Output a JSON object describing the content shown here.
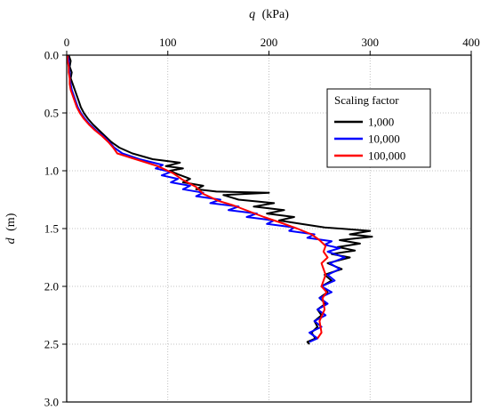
{
  "chart_data": {
    "type": "line",
    "title": "",
    "xlabel_var": "q",
    "xlabel_unit": "(kPa)",
    "ylabel_var": "d",
    "ylabel_unit": "(m)",
    "xlim": [
      0,
      400
    ],
    "ylim": [
      0,
      3.0
    ],
    "y_inverted": true,
    "x_axis_position": "top",
    "x_ticks": [
      0,
      100,
      200,
      300,
      400
    ],
    "x_tick_labels": [
      "0",
      "100",
      "200",
      "300",
      "400"
    ],
    "y_ticks": [
      0,
      0.5,
      1.0,
      1.5,
      2.0,
      2.5,
      3.0
    ],
    "y_tick_labels": [
      "0.0",
      "0.5",
      "1.0",
      "1.5",
      "2.0",
      "2.5",
      "3.0"
    ],
    "grid": "dotted",
    "legend_title": "Scaling factor",
    "legend_position": "top-right",
    "series": [
      {
        "name": "1,000",
        "color": "#000000",
        "points": [
          [
            2,
            0.0
          ],
          [
            4,
            0.05
          ],
          [
            3,
            0.1
          ],
          [
            5,
            0.15
          ],
          [
            4,
            0.2
          ],
          [
            6,
            0.25
          ],
          [
            8,
            0.3
          ],
          [
            10,
            0.35
          ],
          [
            12,
            0.4
          ],
          [
            14,
            0.45
          ],
          [
            17,
            0.5
          ],
          [
            21,
            0.55
          ],
          [
            26,
            0.6
          ],
          [
            32,
            0.65
          ],
          [
            38,
            0.7
          ],
          [
            44,
            0.75
          ],
          [
            52,
            0.8
          ],
          [
            65,
            0.85
          ],
          [
            85,
            0.9
          ],
          [
            112,
            0.93
          ],
          [
            98,
            0.96
          ],
          [
            115,
            0.98
          ],
          [
            102,
            1.0
          ],
          [
            110,
            1.03
          ],
          [
            122,
            1.07
          ],
          [
            115,
            1.1
          ],
          [
            135,
            1.13
          ],
          [
            128,
            1.16
          ],
          [
            148,
            1.18
          ],
          [
            200,
            1.19
          ],
          [
            155,
            1.21
          ],
          [
            170,
            1.25
          ],
          [
            205,
            1.28
          ],
          [
            185,
            1.31
          ],
          [
            215,
            1.34
          ],
          [
            198,
            1.37
          ],
          [
            225,
            1.4
          ],
          [
            210,
            1.43
          ],
          [
            232,
            1.46
          ],
          [
            255,
            1.49
          ],
          [
            300,
            1.52
          ],
          [
            280,
            1.55
          ],
          [
            302,
            1.57
          ],
          [
            270,
            1.6
          ],
          [
            290,
            1.63
          ],
          [
            268,
            1.66
          ],
          [
            285,
            1.69
          ],
          [
            262,
            1.72
          ],
          [
            280,
            1.75
          ],
          [
            258,
            1.8
          ],
          [
            272,
            1.85
          ],
          [
            255,
            1.9
          ],
          [
            262,
            1.95
          ],
          [
            252,
            2.0
          ],
          [
            258,
            2.05
          ],
          [
            250,
            2.1
          ],
          [
            256,
            2.15
          ],
          [
            248,
            2.2
          ],
          [
            252,
            2.25
          ],
          [
            245,
            2.3
          ],
          [
            248,
            2.35
          ],
          [
            242,
            2.4
          ],
          [
            246,
            2.45
          ],
          [
            238,
            2.48
          ],
          [
            240,
            2.5
          ]
        ]
      },
      {
        "name": "10,000",
        "color": "#0000ff",
        "points": [
          [
            1,
            0.0
          ],
          [
            2,
            0.05
          ],
          [
            2,
            0.1
          ],
          [
            3,
            0.15
          ],
          [
            3,
            0.2
          ],
          [
            4,
            0.25
          ],
          [
            5,
            0.3
          ],
          [
            7,
            0.35
          ],
          [
            9,
            0.4
          ],
          [
            11,
            0.45
          ],
          [
            14,
            0.5
          ],
          [
            18,
            0.55
          ],
          [
            23,
            0.6
          ],
          [
            29,
            0.65
          ],
          [
            36,
            0.7
          ],
          [
            42,
            0.75
          ],
          [
            47,
            0.8
          ],
          [
            55,
            0.85
          ],
          [
            72,
            0.9
          ],
          [
            95,
            0.95
          ],
          [
            88,
            0.98
          ],
          [
            103,
            1.01
          ],
          [
            94,
            1.04
          ],
          [
            110,
            1.07
          ],
          [
            103,
            1.1
          ],
          [
            122,
            1.13
          ],
          [
            115,
            1.16
          ],
          [
            135,
            1.19
          ],
          [
            128,
            1.22
          ],
          [
            152,
            1.25
          ],
          [
            142,
            1.28
          ],
          [
            170,
            1.31
          ],
          [
            160,
            1.34
          ],
          [
            188,
            1.37
          ],
          [
            178,
            1.4
          ],
          [
            205,
            1.43
          ],
          [
            198,
            1.46
          ],
          [
            225,
            1.49
          ],
          [
            220,
            1.52
          ],
          [
            245,
            1.55
          ],
          [
            238,
            1.58
          ],
          [
            262,
            1.61
          ],
          [
            255,
            1.64
          ],
          [
            270,
            1.67
          ],
          [
            258,
            1.7
          ],
          [
            275,
            1.75
          ],
          [
            260,
            1.8
          ],
          [
            270,
            1.85
          ],
          [
            258,
            1.9
          ],
          [
            265,
            1.95
          ],
          [
            252,
            2.0
          ],
          [
            262,
            2.05
          ],
          [
            250,
            2.1
          ],
          [
            258,
            2.15
          ],
          [
            248,
            2.2
          ],
          [
            256,
            2.25
          ],
          [
            245,
            2.3
          ],
          [
            252,
            2.35
          ],
          [
            240,
            2.4
          ],
          [
            248,
            2.45
          ],
          [
            240,
            2.48
          ]
        ]
      },
      {
        "name": "100,000",
        "color": "#ff0000",
        "points": [
          [
            1,
            0.0
          ],
          [
            1,
            0.05
          ],
          [
            2,
            0.1
          ],
          [
            2,
            0.15
          ],
          [
            3,
            0.2
          ],
          [
            3,
            0.25
          ],
          [
            4,
            0.3
          ],
          [
            6,
            0.35
          ],
          [
            8,
            0.4
          ],
          [
            10,
            0.45
          ],
          [
            13,
            0.5
          ],
          [
            17,
            0.55
          ],
          [
            22,
            0.6
          ],
          [
            28,
            0.65
          ],
          [
            35,
            0.7
          ],
          [
            41,
            0.75
          ],
          [
            46,
            0.8
          ],
          [
            50,
            0.85
          ],
          [
            68,
            0.9
          ],
          [
            90,
            0.96
          ],
          [
            105,
            1.02
          ],
          [
            115,
            1.08
          ],
          [
            128,
            1.14
          ],
          [
            135,
            1.2
          ],
          [
            150,
            1.26
          ],
          [
            165,
            1.3
          ],
          [
            180,
            1.35
          ],
          [
            195,
            1.4
          ],
          [
            212,
            1.45
          ],
          [
            228,
            1.5
          ],
          [
            242,
            1.55
          ],
          [
            250,
            1.6
          ],
          [
            256,
            1.65
          ],
          [
            254,
            1.7
          ],
          [
            258,
            1.75
          ],
          [
            252,
            1.8
          ],
          [
            256,
            1.9
          ],
          [
            252,
            2.0
          ],
          [
            257,
            2.05
          ],
          [
            253,
            2.1
          ],
          [
            255,
            2.2
          ],
          [
            250,
            2.3
          ],
          [
            252,
            2.4
          ],
          [
            248,
            2.45
          ]
        ]
      }
    ]
  }
}
